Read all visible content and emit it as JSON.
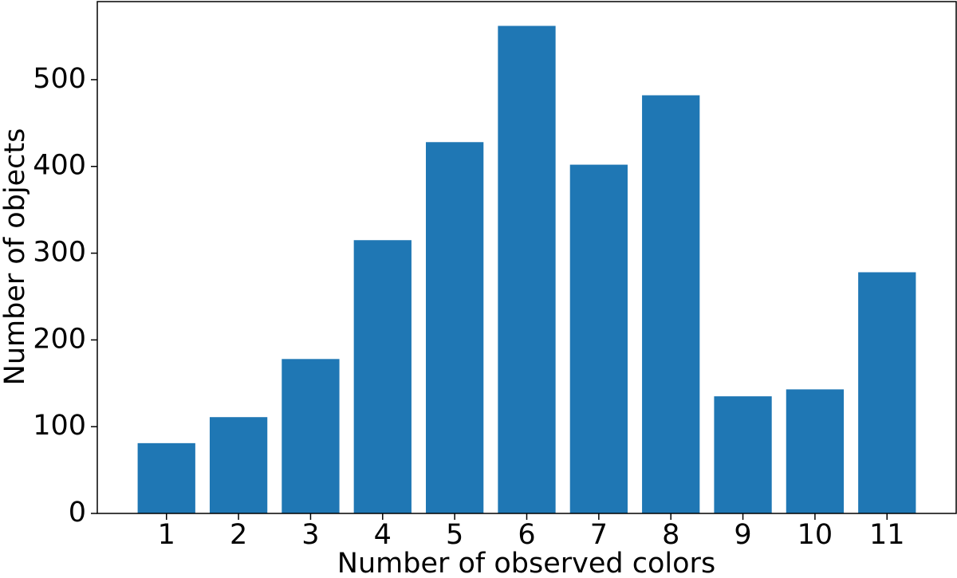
{
  "chart_data": {
    "type": "bar",
    "x_label": "Number of observed colors",
    "y_label": "Number of objects",
    "categories": [
      "1",
      "2",
      "3",
      "4",
      "5",
      "6",
      "7",
      "8",
      "9",
      "10",
      "11"
    ],
    "values": [
      81,
      111,
      178,
      315,
      428,
      562,
      402,
      482,
      135,
      143,
      278
    ],
    "color": "#1f77b4",
    "ylim": [
      0,
      590
    ],
    "yticks": [
      0,
      100,
      200,
      300,
      400,
      500
    ],
    "grid": false
  }
}
